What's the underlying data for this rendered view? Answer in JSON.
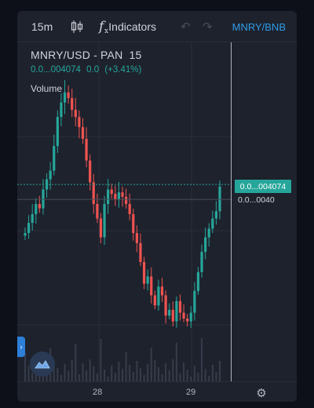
{
  "toolbar": {
    "interval": "15m",
    "candle_icon": "candles-icon",
    "indicators_icon": "fx-icon",
    "indicators_label": "Indicators",
    "undo_icon": "undo-icon",
    "redo_icon": "redo-icon",
    "symbol": "MNRY/BNB"
  },
  "legend": {
    "symbol": "MNRY/USD - PAN",
    "interval": "15",
    "last": "0.0...004074",
    "change": "0.0",
    "change_pct": "(+3.41%)"
  },
  "volume_label": "Volume",
  "price_axis": {
    "current_price_label": "0.0...004074",
    "crosshair_price_label": "0.0...0040"
  },
  "time_axis": {
    "labels": [
      "28",
      "29"
    ]
  },
  "icons": {
    "settings": "gear-icon",
    "side_handle": "chevron-right-icon",
    "logo": "tradingview-logo-icon"
  },
  "colors": {
    "up": "#26a69a",
    "down": "#ef5350",
    "accent": "#2e9ce8",
    "background": "#1e222d"
  },
  "chart_data": {
    "type": "candlestick",
    "x_ticks": [
      "28",
      "29"
    ],
    "close_series": [
      0.00375,
      0.00382,
      0.00388,
      0.00395,
      0.00392,
      0.00405,
      0.00412,
      0.00418,
      0.00435,
      0.00455,
      0.00465,
      0.00472,
      0.00468,
      0.0046,
      0.00455,
      0.00448,
      0.0044,
      0.00425,
      0.0041,
      0.00395,
      0.00385,
      0.00372,
      0.00395,
      0.00405,
      0.00402,
      0.00398,
      0.00403,
      0.004,
      0.00395,
      0.00388,
      0.00375,
      0.00368,
      0.00355,
      0.0034,
      0.00345,
      0.00332,
      0.00325,
      0.00338,
      0.00332,
      0.00318,
      0.00322,
      0.00314,
      0.00328,
      0.0032,
      0.00316,
      0.00314,
      0.0032,
      0.00335,
      0.00348,
      0.00362,
      0.00372,
      0.00378,
      0.00385,
      0.0039,
      0.00407
    ],
    "last_price": 0.004074,
    "change_pct": 3.41
  }
}
